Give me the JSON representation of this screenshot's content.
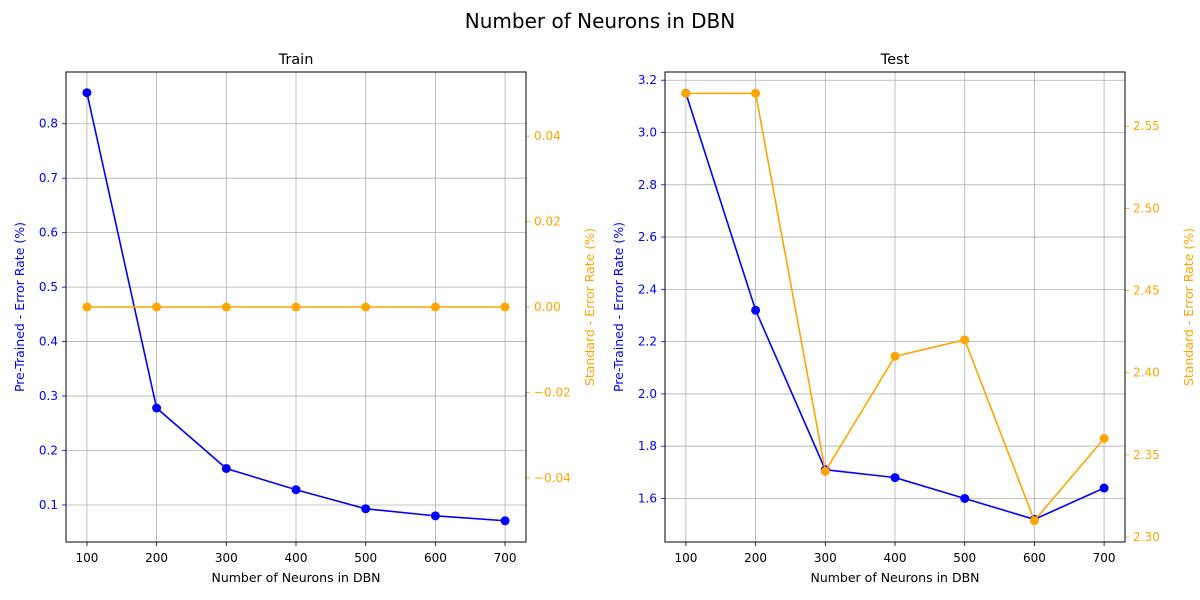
{
  "figure": {
    "suptitle": "Number of Neurons in DBN",
    "colors": {
      "pretrained": "#0000ff",
      "standard": "#ffa500",
      "grid": "#b0b0b0",
      "axis": "#000000"
    }
  },
  "chart_data": [
    {
      "type": "line",
      "title": "Train",
      "xlabel": "Number of Neurons in DBN",
      "ylabel_left": "Pre-Trained - Error Rate (%)",
      "ylabel_right": "Standard - Error Rate (%)",
      "x": [
        100,
        200,
        300,
        400,
        500,
        600,
        700
      ],
      "xticks": [
        100,
        200,
        300,
        400,
        500,
        600,
        700
      ],
      "xlim": [
        70,
        730
      ],
      "grid": true,
      "left_axis": {
        "ylim": [
          0.032,
          0.895
        ],
        "ticks": [
          0.1,
          0.2,
          0.3,
          0.4,
          0.5,
          0.6,
          0.7,
          0.8
        ],
        "tick_labels": [
          "0.1",
          "0.2",
          "0.3",
          "0.4",
          "0.5",
          "0.6",
          "0.7",
          "0.8"
        ]
      },
      "right_axis": {
        "ylim": [
          -0.055,
          0.055
        ],
        "ticks": [
          -0.04,
          -0.02,
          0.0,
          0.02,
          0.04
        ],
        "tick_labels": [
          "−0.04",
          "−0.02",
          "0.00",
          "0.02",
          "0.04"
        ]
      },
      "series": [
        {
          "name": "Pre-Trained",
          "axis": "left",
          "values": [
            0.857,
            0.278,
            0.167,
            0.128,
            0.093,
            0.08,
            0.071
          ]
        },
        {
          "name": "Standard",
          "axis": "right",
          "values": [
            0.0,
            0.0,
            0.0,
            0.0,
            0.0,
            0.0,
            0.0
          ]
        }
      ]
    },
    {
      "type": "line",
      "title": "Test",
      "xlabel": "Number of Neurons in DBN",
      "ylabel_left": "Pre-Trained - Error Rate (%)",
      "ylabel_right": "Standard - Error Rate (%)",
      "x": [
        100,
        200,
        300,
        400,
        500,
        600,
        700
      ],
      "xticks": [
        100,
        200,
        300,
        400,
        500,
        600,
        700
      ],
      "xlim": [
        70,
        730
      ],
      "grid": true,
      "left_axis": {
        "ylim": [
          1.4335,
          3.2315
        ],
        "ticks": [
          1.6,
          1.8,
          2.0,
          2.2,
          2.4,
          2.6,
          2.8,
          3.0,
          3.2
        ],
        "tick_labels": [
          "1.6",
          "1.8",
          "2.0",
          "2.2",
          "2.4",
          "2.6",
          "2.8",
          "3.0",
          "3.2"
        ]
      },
      "right_axis": {
        "ylim": [
          2.297,
          2.583
        ],
        "ticks": [
          2.3,
          2.35,
          2.4,
          2.45,
          2.5,
          2.55
        ],
        "tick_labels": [
          "2.30",
          "2.35",
          "2.40",
          "2.45",
          "2.50",
          "2.55"
        ]
      },
      "series": [
        {
          "name": "Pre-Trained",
          "axis": "left",
          "values": [
            3.15,
            2.32,
            1.71,
            1.68,
            1.6,
            1.52,
            1.64
          ]
        },
        {
          "name": "Standard",
          "axis": "right",
          "values": [
            2.57,
            2.57,
            2.34,
            2.41,
            2.42,
            2.31,
            2.36
          ]
        }
      ]
    }
  ]
}
